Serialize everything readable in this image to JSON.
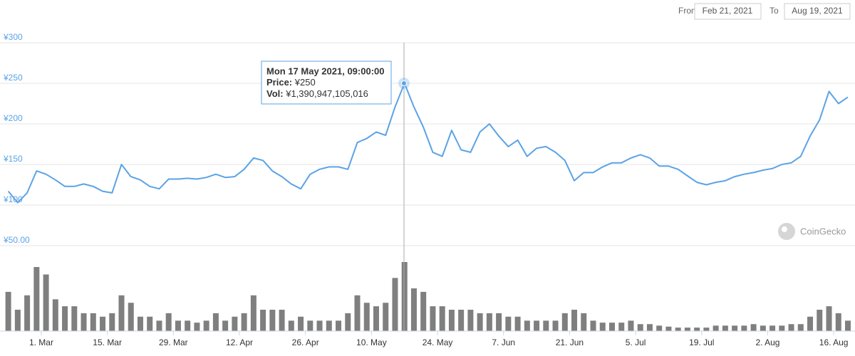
{
  "date_range": {
    "from_label": "From",
    "from": "Feb 21, 2021",
    "to_label": "To",
    "to": "Aug 19, 2021"
  },
  "chart_data": [
    {
      "type": "line",
      "color": "#5ba3e6",
      "grid": true,
      "xlim": [
        "2021-02-21",
        "2021-08-19"
      ],
      "ylim": [
        50,
        300
      ],
      "yticks": [
        {
          "value": 50,
          "label": "¥50.00"
        },
        {
          "value": 100,
          "label": "¥100"
        },
        {
          "value": 150,
          "label": "¥150"
        },
        {
          "value": 200,
          "label": "¥200"
        },
        {
          "value": 250,
          "label": "¥250"
        },
        {
          "value": 300,
          "label": "¥300"
        }
      ],
      "x": [
        "2021-02-22",
        "2021-02-24",
        "2021-02-26",
        "2021-02-28",
        "2021-03-02",
        "2021-03-04",
        "2021-03-06",
        "2021-03-08",
        "2021-03-10",
        "2021-03-12",
        "2021-03-14",
        "2021-03-16",
        "2021-03-18",
        "2021-03-20",
        "2021-03-22",
        "2021-03-24",
        "2021-03-26",
        "2021-03-28",
        "2021-03-30",
        "2021-04-01",
        "2021-04-03",
        "2021-04-05",
        "2021-04-07",
        "2021-04-09",
        "2021-04-11",
        "2021-04-13",
        "2021-04-15",
        "2021-04-17",
        "2021-04-19",
        "2021-04-21",
        "2021-04-23",
        "2021-04-25",
        "2021-04-27",
        "2021-04-29",
        "2021-05-01",
        "2021-05-03",
        "2021-05-05",
        "2021-05-07",
        "2021-05-09",
        "2021-05-11",
        "2021-05-13",
        "2021-05-15",
        "2021-05-17",
        "2021-05-19",
        "2021-05-21",
        "2021-05-23",
        "2021-05-25",
        "2021-05-27",
        "2021-05-29",
        "2021-05-31",
        "2021-06-02",
        "2021-06-04",
        "2021-06-06",
        "2021-06-08",
        "2021-06-10",
        "2021-06-12",
        "2021-06-14",
        "2021-06-16",
        "2021-06-18",
        "2021-06-20",
        "2021-06-22",
        "2021-06-24",
        "2021-06-26",
        "2021-06-28",
        "2021-06-30",
        "2021-07-02",
        "2021-07-04",
        "2021-07-06",
        "2021-07-08",
        "2021-07-10",
        "2021-07-12",
        "2021-07-14",
        "2021-07-16",
        "2021-07-18",
        "2021-07-20",
        "2021-07-22",
        "2021-07-24",
        "2021-07-26",
        "2021-07-28",
        "2021-07-30",
        "2021-08-01",
        "2021-08-03",
        "2021-08-05",
        "2021-08-07",
        "2021-08-09",
        "2021-08-11",
        "2021-08-13",
        "2021-08-15",
        "2021-08-17",
        "2021-08-19"
      ],
      "values": [
        117,
        103,
        115,
        142,
        138,
        131,
        123,
        123,
        126,
        123,
        117,
        115,
        150,
        135,
        131,
        123,
        120,
        132,
        132,
        133,
        132,
        134,
        138,
        134,
        135,
        144,
        158,
        155,
        142,
        135,
        126,
        120,
        138,
        144,
        147,
        147,
        144,
        177,
        182,
        190,
        186,
        221,
        250,
        221,
        196,
        165,
        160,
        192,
        168,
        165,
        190,
        200,
        185,
        172,
        180,
        160,
        170,
        172,
        165,
        155,
        130,
        140,
        140,
        147,
        152,
        152,
        158,
        162,
        158,
        148,
        148,
        144,
        136,
        128,
        125,
        128,
        130,
        135,
        138,
        140,
        143,
        145,
        150,
        152,
        160,
        185,
        205,
        240,
        225,
        233
      ]
    },
    {
      "type": "bar",
      "color": "#7f7f7f",
      "xlim": [
        "2021-02-21",
        "2021-08-19"
      ],
      "xticks": [
        {
          "value": "2021-03-01",
          "label": "1. Mar"
        },
        {
          "value": "2021-03-15",
          "label": "15. Mar"
        },
        {
          "value": "2021-03-29",
          "label": "29. Mar"
        },
        {
          "value": "2021-04-12",
          "label": "12. Apr"
        },
        {
          "value": "2021-04-26",
          "label": "26. Apr"
        },
        {
          "value": "2021-05-10",
          "label": "10. May"
        },
        {
          "value": "2021-05-24",
          "label": "24. May"
        },
        {
          "value": "2021-06-07",
          "label": "7. Jun"
        },
        {
          "value": "2021-06-21",
          "label": "21. Jun"
        },
        {
          "value": "2021-07-05",
          "label": "5. Jul"
        },
        {
          "value": "2021-07-19",
          "label": "19. Jul"
        },
        {
          "value": "2021-08-02",
          "label": "2. Aug"
        },
        {
          "value": "2021-08-16",
          "label": "16. Aug"
        }
      ],
      "x": [
        "2021-02-22",
        "2021-02-24",
        "2021-02-26",
        "2021-02-28",
        "2021-03-02",
        "2021-03-04",
        "2021-03-06",
        "2021-03-08",
        "2021-03-10",
        "2021-03-12",
        "2021-03-14",
        "2021-03-16",
        "2021-03-18",
        "2021-03-20",
        "2021-03-22",
        "2021-03-24",
        "2021-03-26",
        "2021-03-28",
        "2021-03-30",
        "2021-04-01",
        "2021-04-03",
        "2021-04-05",
        "2021-04-07",
        "2021-04-09",
        "2021-04-11",
        "2021-04-13",
        "2021-04-15",
        "2021-04-17",
        "2021-04-19",
        "2021-04-21",
        "2021-04-23",
        "2021-04-25",
        "2021-04-27",
        "2021-04-29",
        "2021-05-01",
        "2021-05-03",
        "2021-05-05",
        "2021-05-07",
        "2021-05-09",
        "2021-05-11",
        "2021-05-13",
        "2021-05-15",
        "2021-05-17",
        "2021-05-19",
        "2021-05-21",
        "2021-05-23",
        "2021-05-25",
        "2021-05-27",
        "2021-05-29",
        "2021-05-31",
        "2021-06-02",
        "2021-06-04",
        "2021-06-06",
        "2021-06-08",
        "2021-06-10",
        "2021-06-12",
        "2021-06-14",
        "2021-06-16",
        "2021-06-18",
        "2021-06-20",
        "2021-06-22",
        "2021-06-24",
        "2021-06-26",
        "2021-06-28",
        "2021-06-30",
        "2021-07-02",
        "2021-07-04",
        "2021-07-06",
        "2021-07-08",
        "2021-07-10",
        "2021-07-12",
        "2021-07-14",
        "2021-07-16",
        "2021-07-18",
        "2021-07-20",
        "2021-07-22",
        "2021-07-24",
        "2021-07-26",
        "2021-07-28",
        "2021-07-30",
        "2021-08-01",
        "2021-08-03",
        "2021-08-05",
        "2021-08-07",
        "2021-08-09",
        "2021-08-11",
        "2021-08-13",
        "2021-08-15",
        "2021-08-17",
        "2021-08-19"
      ],
      "values": [
        790000000000,
        430000000000,
        720000000000,
        1290000000000,
        1140000000000,
        640000000000,
        500000000000,
        500000000000,
        360000000000,
        360000000000,
        290000000000,
        360000000000,
        720000000000,
        570000000000,
        290000000000,
        290000000000,
        210000000000,
        360000000000,
        210000000000,
        210000000000,
        170000000000,
        210000000000,
        360000000000,
        210000000000,
        290000000000,
        360000000000,
        720000000000,
        430000000000,
        430000000000,
        430000000000,
        210000000000,
        290000000000,
        210000000000,
        210000000000,
        210000000000,
        210000000000,
        360000000000,
        720000000000,
        570000000000,
        500000000000,
        570000000000,
        1070000000000,
        1390947105016,
        860000000000,
        790000000000,
        500000000000,
        500000000000,
        430000000000,
        430000000000,
        430000000000,
        360000000000,
        360000000000,
        360000000000,
        290000000000,
        290000000000,
        210000000000,
        210000000000,
        210000000000,
        210000000000,
        360000000000,
        430000000000,
        360000000000,
        210000000000,
        170000000000,
        170000000000,
        170000000000,
        210000000000,
        140000000000,
        140000000000,
        110000000000,
        90000000000,
        70000000000,
        70000000000,
        70000000000,
        70000000000,
        110000000000,
        110000000000,
        110000000000,
        110000000000,
        140000000000,
        110000000000,
        110000000000,
        110000000000,
        140000000000,
        140000000000,
        290000000000,
        430000000000,
        500000000000,
        360000000000,
        210000000000
      ]
    }
  ],
  "tooltip": {
    "date": "Mon 17 May 2021, 09:00:00",
    "price_label": "Price:",
    "price": "¥250",
    "vol_label": "Vol:",
    "vol": "¥1,390,947,105,016"
  },
  "watermark": "CoinGecko"
}
